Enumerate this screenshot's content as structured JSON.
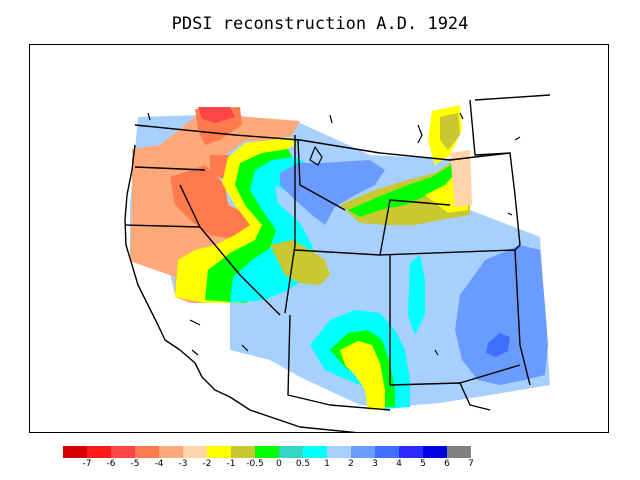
{
  "title": "PDSI reconstruction A.D. 1924",
  "legend": {
    "colors": [
      "#d60000",
      "#ff1a1a",
      "#ff4545",
      "#ff7a4d",
      "#ffa87a",
      "#ffd4a8",
      "#ffff00",
      "#c8c832",
      "#00ff00",
      "#33d6c3",
      "#00ffff",
      "#a8d0ff",
      "#6a9cff",
      "#3f6fff",
      "#2a2aff",
      "#0000e0",
      "#808080"
    ],
    "ticks": [
      "-7",
      "-6",
      "-5",
      "-4",
      "-3",
      "-2",
      "-1",
      "-0.5",
      "0",
      "0.5",
      "1",
      "2",
      "3",
      "4",
      "5",
      "6",
      "7"
    ]
  },
  "map": {
    "region": "Western United States",
    "palette": {
      "salmon": "#ffa87a",
      "peach": "#ffd4a8",
      "orange": "#ff7a4d",
      "red": "#ff4545",
      "yellow": "#ffff00",
      "olive": "#c8c832",
      "green": "#00ff00",
      "teal": "#33d6c3",
      "cyan": "#00ffff",
      "lightblue": "#a8d0ff",
      "blue": "#6a9cff",
      "darkblue": "#3f6fff"
    }
  }
}
